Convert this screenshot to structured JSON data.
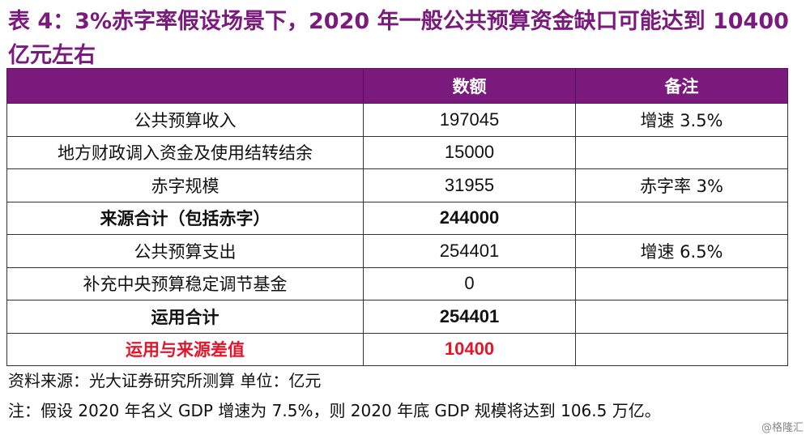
{
  "title": "表 4：3%赤字率假设场景下，2020 年一般公共预算资金缺口可能达到 10400 亿元左右",
  "table": {
    "headers": [
      "",
      "数额",
      "备注"
    ],
    "rows": [
      {
        "label": "公共预算收入",
        "value": "197045",
        "note": "增速 3.5%"
      },
      {
        "label": "地方财政调入资金及使用结转结余",
        "value": "15000",
        "note": ""
      },
      {
        "label": "赤字规模",
        "value": "31955",
        "note": "赤字率 3%"
      },
      {
        "label": "来源合计（包括赤字）",
        "value": "244000",
        "note": ""
      },
      {
        "label": "公共预算支出",
        "value": "254401",
        "note": "增速 6.5%"
      },
      {
        "label": "补充中央预算稳定调节基金",
        "value": "0",
        "note": ""
      },
      {
        "label": "运用合计",
        "value": "254401",
        "note": ""
      },
      {
        "label": "运用与来源差值",
        "value": "10400",
        "note": ""
      }
    ]
  },
  "source_note": "资料来源：光大证券研究所测算  单位：亿元",
  "assumption_note": "注：假设 2020 年名义 GDP 增速为 7.5%，则 2020 年底 GDP 规模将达到 106.5 万亿。",
  "watermark": "@格隆汇"
}
